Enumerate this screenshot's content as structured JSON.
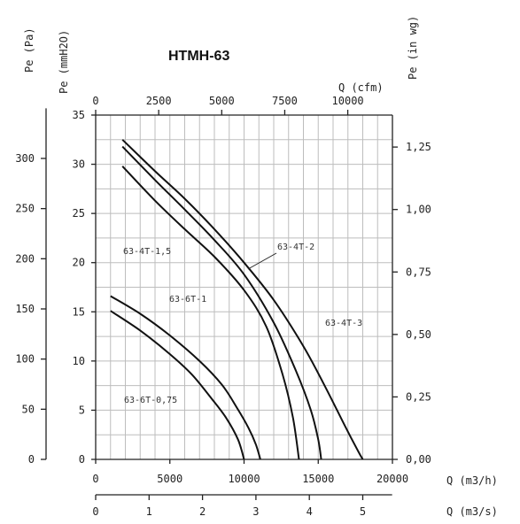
{
  "chart_data": {
    "type": "line",
    "title": "HTMH-63",
    "axes": {
      "left_pa": {
        "label": "Pe (Pa)",
        "ticks": [
          "0",
          "50",
          "100",
          "150",
          "200",
          "250",
          "300"
        ],
        "values": [
          0,
          50,
          100,
          150,
          200,
          250,
          300
        ]
      },
      "left_mmh2o": {
        "label": "Pe (mmH2O)",
        "ticks": [
          "0",
          "5",
          "10",
          "15",
          "20",
          "25",
          "30",
          "35"
        ],
        "values": [
          0,
          5,
          10,
          15,
          20,
          25,
          30,
          35
        ]
      },
      "right_inwg": {
        "label": "Pe (in wg)",
        "ticks": [
          "0,00",
          "0,25",
          "0,50",
          "0,75",
          "1,00",
          "1,25"
        ],
        "values": [
          0,
          0.25,
          0.5,
          0.75,
          1.0,
          1.25
        ]
      },
      "top_cfm": {
        "label": "Q (cfm)",
        "ticks": [
          "0",
          "2500",
          "5000",
          "7500",
          "10000"
        ],
        "values": [
          0,
          2500,
          5000,
          7500,
          10000
        ]
      },
      "bottom_m3h": {
        "label": "Q (m3/h)",
        "ticks": [
          "0",
          "5000",
          "10000",
          "15000",
          "20000"
        ],
        "values": [
          0,
          5000,
          10000,
          15000,
          20000
        ]
      },
      "bottom_m3s": {
        "label": "Q (m3/s)",
        "ticks": [
          "0",
          "1",
          "2",
          "3",
          "4",
          "5"
        ],
        "values": [
          0,
          1,
          2,
          3,
          4,
          5
        ]
      }
    },
    "xlim": [
      0,
      20000
    ],
    "ylim": [
      0,
      35
    ],
    "x_unit": "m3/h",
    "y_unit": "mmH2O",
    "grid": true,
    "series": [
      {
        "name": "63-4T-3",
        "x": [
          1800,
          4000,
          6000,
          8000,
          10000,
          12000,
          14000,
          15500,
          16800,
          17700,
          18000
        ],
        "y": [
          32.5,
          29.3,
          26.5,
          23.4,
          20.0,
          16.2,
          11.5,
          7.3,
          3.4,
          0.8,
          0
        ]
      },
      {
        "name": "63-4T-2",
        "x": [
          1800,
          4000,
          6000,
          8000,
          10000,
          12000,
          13500,
          14500,
          15000,
          15200
        ],
        "y": [
          31.8,
          28.4,
          25.4,
          22.3,
          18.8,
          13.9,
          9.0,
          5.0,
          2.0,
          0
        ]
      },
      {
        "name": "63-4T-1,5",
        "x": [
          1800,
          4000,
          6000,
          8000,
          10000,
          11500,
          12600,
          13300,
          13700
        ],
        "y": [
          29.8,
          26.3,
          23.4,
          20.6,
          17.2,
          13.5,
          8.6,
          4.2,
          0
        ]
      },
      {
        "name": "63-6T-1",
        "x": [
          1000,
          3000,
          5000,
          7000,
          8500,
          9500,
          10300,
          10800,
          11100
        ],
        "y": [
          16.6,
          14.8,
          12.6,
          10.0,
          7.6,
          5.3,
          3.2,
          1.5,
          0
        ]
      },
      {
        "name": "63-6T-0,75",
        "x": [
          1000,
          3000,
          5000,
          6500,
          7800,
          8800,
          9600,
          10000
        ],
        "y": [
          15.1,
          13.1,
          10.7,
          8.6,
          6.2,
          4.2,
          2.0,
          0
        ]
      }
    ],
    "curve_labels": [
      "63-4T-3",
      "63-4T-2",
      "63-4T-1,5",
      "63-6T-1",
      "63-6T-0,75"
    ]
  }
}
